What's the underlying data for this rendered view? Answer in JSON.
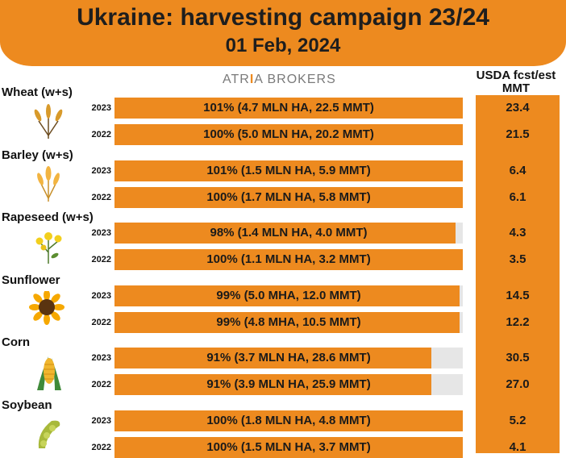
{
  "header": {
    "title": "Ukraine: harvesting campaign 23/24",
    "date": "01 Feb, 2024"
  },
  "logo": {
    "left": "ATR",
    "mid": "I",
    "right": "A BROKERS"
  },
  "usda_header": {
    "line1": "USDA fcst/est",
    "line2": "MMT"
  },
  "colors": {
    "accent": "#ed8a1f",
    "track": "#e6e6e6"
  },
  "chart_data": {
    "type": "bar",
    "title": "Ukraine: harvesting campaign 23/24",
    "subtitle": "01 Feb, 2024",
    "crops": [
      {
        "name": "Wheat (w+s)",
        "icon": "wheat-icon",
        "rows": [
          {
            "year": "2023",
            "pct": 101,
            "label": "101% (4.7 MLN HA, 22.5 MMT)",
            "usda": "23.4"
          },
          {
            "year": "2022",
            "pct": 100,
            "label": "100% (5.0 MLN HA, 20.2 MMT)",
            "usda": "21.5"
          }
        ]
      },
      {
        "name": "Barley (w+s)",
        "icon": "barley-icon",
        "rows": [
          {
            "year": "2023",
            "pct": 101,
            "label": "101% (1.5 MLN HA, 5.9 MMT)",
            "usda": "6.4"
          },
          {
            "year": "2022",
            "pct": 100,
            "label": "100% (1.7 MLN HA, 5.8 MMT)",
            "usda": "6.1"
          }
        ]
      },
      {
        "name": "Rapeseed (w+s)",
        "icon": "rapeseed-icon",
        "rows": [
          {
            "year": "2023",
            "pct": 98,
            "label": "98% (1.4 MLN HA, 4.0 MMT)",
            "usda": "4.3"
          },
          {
            "year": "2022",
            "pct": 100,
            "label": "100% (1.1 MLN HA, 3.2 MMT)",
            "usda": "3.5"
          }
        ]
      },
      {
        "name": "Sunflower",
        "icon": "sunflower-icon",
        "rows": [
          {
            "year": "2023",
            "pct": 99,
            "label": "99% (5.0 MHA, 12.0 MMT)",
            "usda": "14.5"
          },
          {
            "year": "2022",
            "pct": 99,
            "label": "99% (4.8 MHA, 10.5 MMT)",
            "usda": "12.2"
          }
        ]
      },
      {
        "name": "Corn",
        "icon": "corn-icon",
        "rows": [
          {
            "year": "2023",
            "pct": 91,
            "label": "91% (3.7 MLN HA, 28.6 MMT)",
            "usda": "30.5"
          },
          {
            "year": "2022",
            "pct": 91,
            "label": "91% (3.9 MLN HA, 25.9 MMT)",
            "usda": "27.0"
          }
        ]
      },
      {
        "name": "Soybean",
        "icon": "soybean-icon",
        "rows": [
          {
            "year": "2023",
            "pct": 100,
            "label": "100% (1.8 MLN HA, 4.8 MMT)",
            "usda": "5.2"
          },
          {
            "year": "2022",
            "pct": 100,
            "label": "100% (1.5 MLN HA, 3.7 MMT)",
            "usda": "4.1"
          }
        ]
      }
    ]
  }
}
